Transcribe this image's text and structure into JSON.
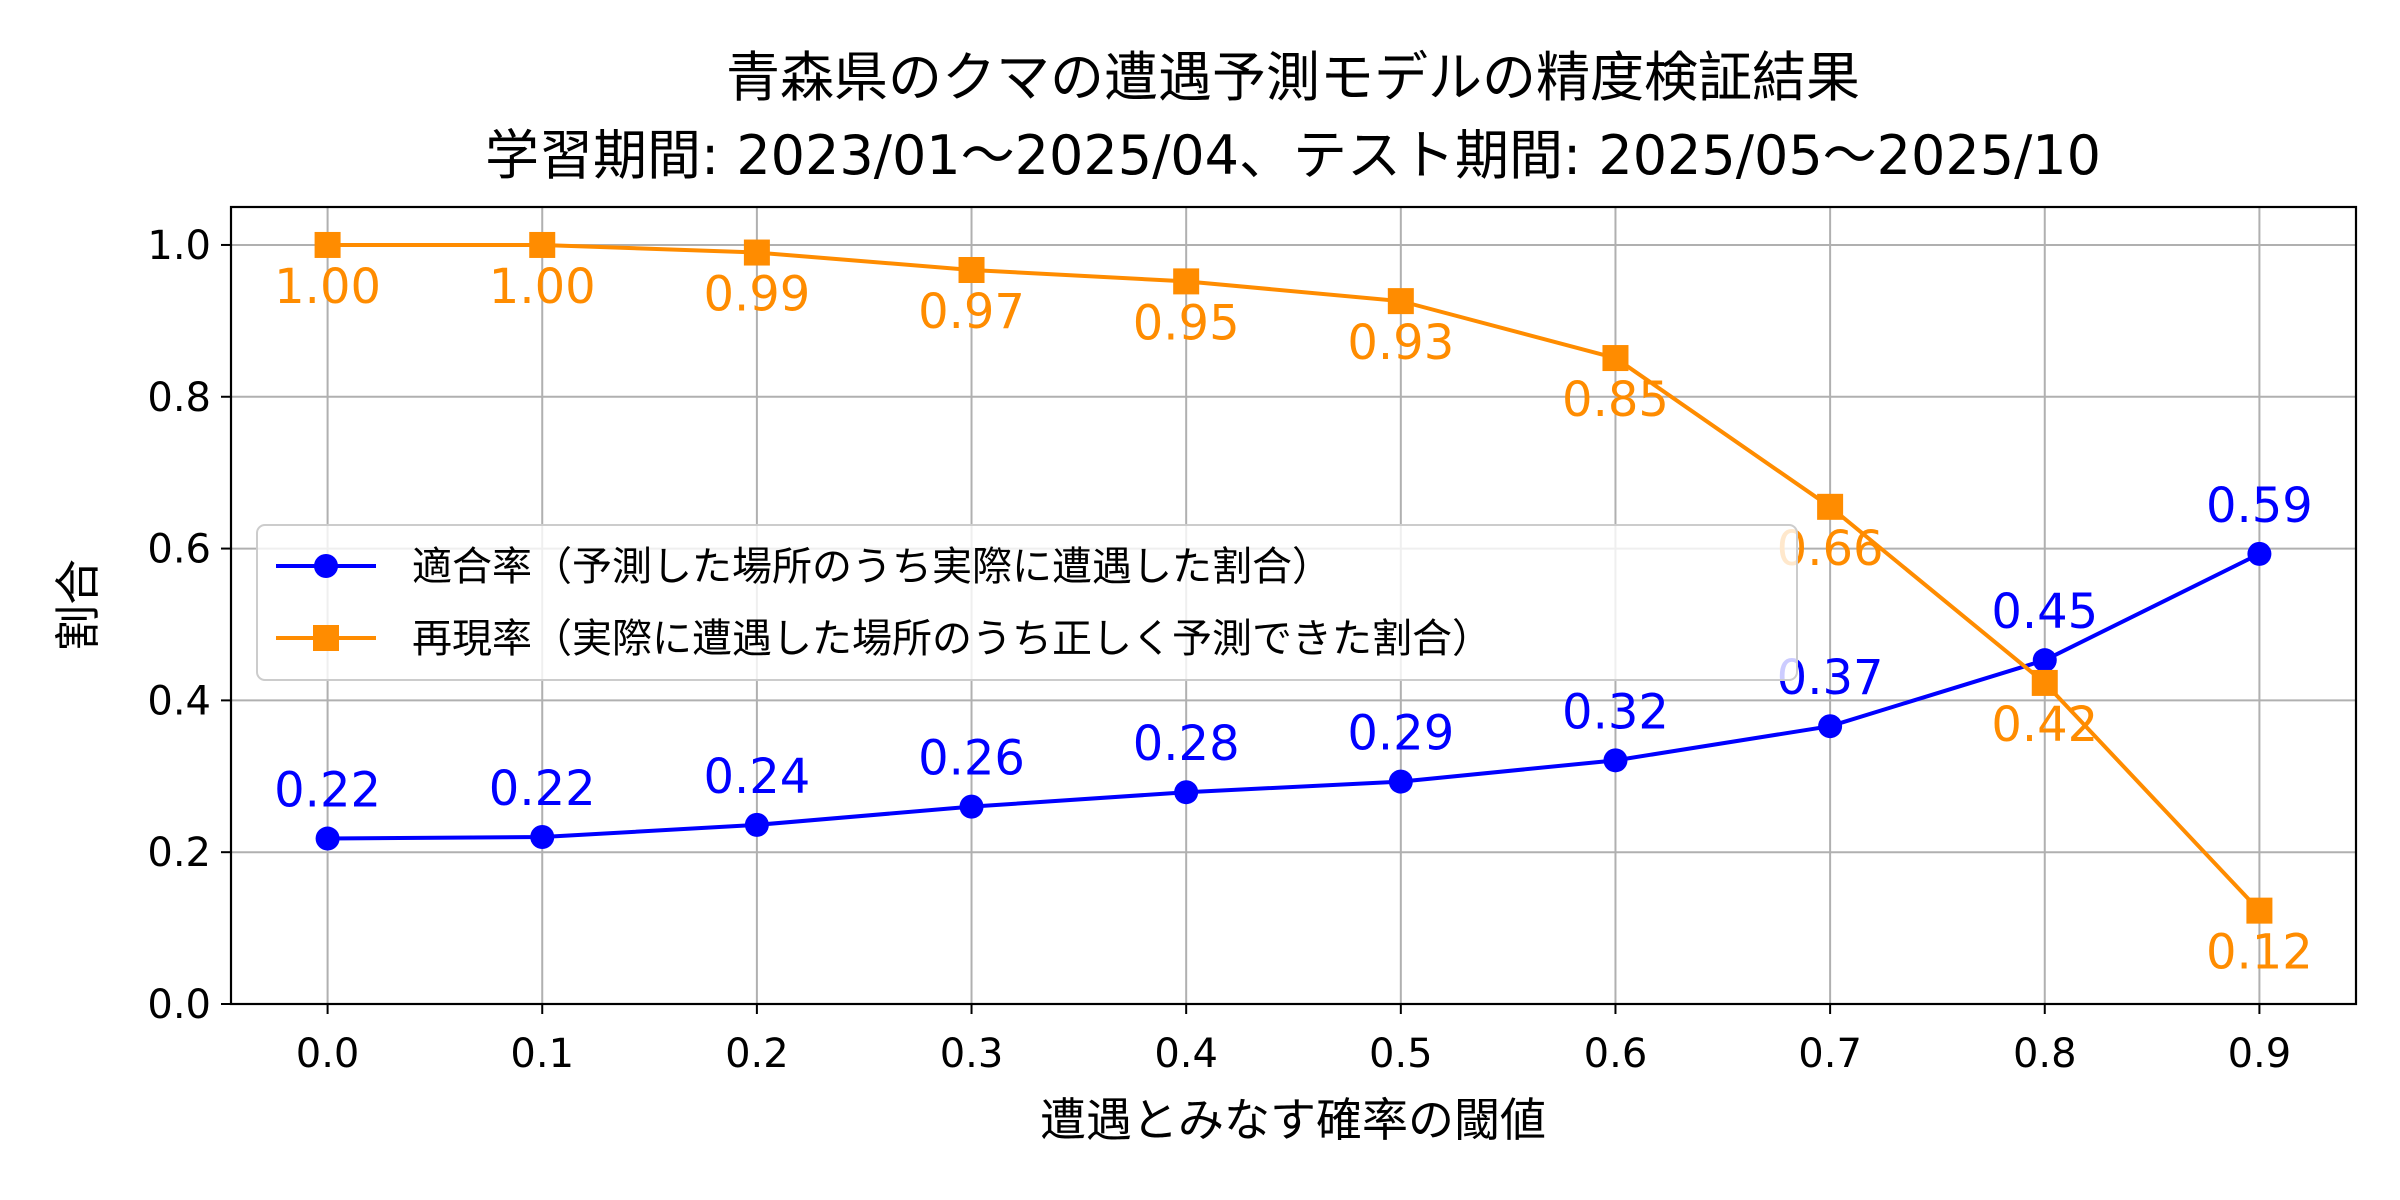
{
  "chart_data": {
    "type": "line",
    "title": "青森県のクマの遭遇予測モデルの精度検証結果",
    "subtitle": "学習期間: 2023/01〜2025/04、テスト期間: 2025/05〜2025/10",
    "xlabel": "遭遇とみなす確率の閾値",
    "ylabel": "割合",
    "x": [
      0.0,
      0.1,
      0.2,
      0.3,
      0.4,
      0.5,
      0.6,
      0.7,
      0.8,
      0.9
    ],
    "x_tick_labels": [
      "0.0",
      "0.1",
      "0.2",
      "0.3",
      "0.4",
      "0.5",
      "0.6",
      "0.7",
      "0.8",
      "0.9"
    ],
    "y_tick_values": [
      0.0,
      0.2,
      0.4,
      0.6,
      0.8,
      1.0
    ],
    "y_tick_labels": [
      "0.0",
      "0.2",
      "0.4",
      "0.6",
      "0.8",
      "1.0"
    ],
    "xlim": [
      -0.045,
      0.945
    ],
    "ylim": [
      0.0,
      1.05
    ],
    "grid": true,
    "legend_position": "center-left",
    "series": [
      {
        "name": "適合率（予測した場所のうち実際に遭遇した割合）",
        "color": "#0000ff",
        "marker": "circle",
        "label_position": "above",
        "values": [
          0.218,
          0.22,
          0.236,
          0.26,
          0.279,
          0.293,
          0.321,
          0.366,
          0.453,
          0.593
        ],
        "labels": [
          "0.22",
          "0.22",
          "0.24",
          "0.26",
          "0.28",
          "0.29",
          "0.32",
          "0.37",
          "0.45",
          "0.59"
        ]
      },
      {
        "name": "再現率（実際に遭遇した場所のうち正しく予測できた割合）",
        "color": "#ff8c00",
        "marker": "square",
        "label_position": "below",
        "values": [
          1.0,
          1.0,
          0.99,
          0.967,
          0.952,
          0.926,
          0.851,
          0.655,
          0.423,
          0.123
        ],
        "labels": [
          "1.00",
          "1.00",
          "0.99",
          "0.97",
          "0.95",
          "0.93",
          "0.85",
          "0.66",
          "0.42",
          "0.12"
        ]
      }
    ]
  }
}
